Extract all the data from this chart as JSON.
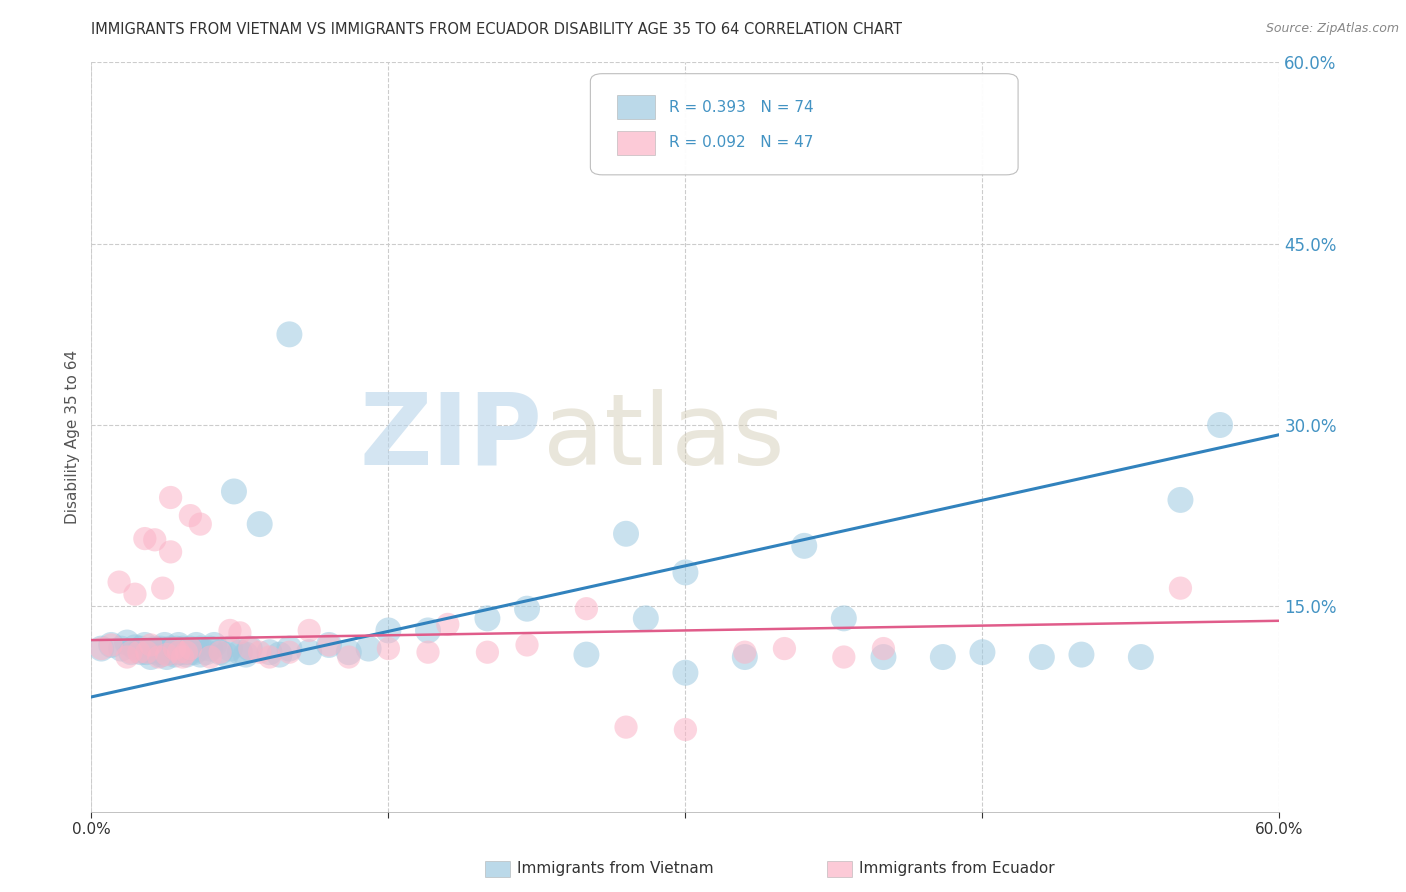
{
  "title": "IMMIGRANTS FROM VIETNAM VS IMMIGRANTS FROM ECUADOR DISABILITY AGE 35 TO 64 CORRELATION CHART",
  "source": "Source: ZipAtlas.com",
  "ylabel": "Disability Age 35 to 64",
  "xlim": [
    0.0,
    0.6
  ],
  "ylim": [
    -0.02,
    0.6
  ],
  "y_tick_positions_right": [
    0.6,
    0.45,
    0.3,
    0.15
  ],
  "legend_vietnam_r": "R = 0.393",
  "legend_vietnam_n": "N = 74",
  "legend_ecuador_r": "R = 0.092",
  "legend_ecuador_n": "N = 47",
  "color_vietnam": "#9ecae1",
  "color_ecuador": "#fbb4c7",
  "color_vietnam_line": "#3182bd",
  "color_ecuador_line": "#e05c8a",
  "color_right_axis": "#4393c3",
  "watermark_zip": "ZIP",
  "watermark_atlas": "atlas",
  "background_color": "#ffffff",
  "vietnam_x": [
    0.005,
    0.01,
    0.015,
    0.018,
    0.02,
    0.022,
    0.025,
    0.025,
    0.027,
    0.028,
    0.03,
    0.03,
    0.032,
    0.033,
    0.035,
    0.035,
    0.036,
    0.037,
    0.038,
    0.04,
    0.04,
    0.041,
    0.042,
    0.043,
    0.044,
    0.045,
    0.046,
    0.047,
    0.048,
    0.05,
    0.05,
    0.052,
    0.053,
    0.055,
    0.055,
    0.058,
    0.06,
    0.062,
    0.065,
    0.068,
    0.07,
    0.072,
    0.075,
    0.078,
    0.08,
    0.085,
    0.09,
    0.095,
    0.1,
    0.11,
    0.12,
    0.13,
    0.14,
    0.15,
    0.17,
    0.2,
    0.22,
    0.25,
    0.28,
    0.3,
    0.33,
    0.36,
    0.38,
    0.4,
    0.43,
    0.45,
    0.48,
    0.5,
    0.53,
    0.55,
    0.27,
    0.3,
    0.1,
    0.57
  ],
  "vietnam_y": [
    0.115,
    0.118,
    0.115,
    0.12,
    0.112,
    0.116,
    0.112,
    0.115,
    0.118,
    0.112,
    0.108,
    0.113,
    0.115,
    0.112,
    0.11,
    0.115,
    0.112,
    0.118,
    0.108,
    0.112,
    0.115,
    0.112,
    0.11,
    0.115,
    0.118,
    0.112,
    0.115,
    0.112,
    0.11,
    0.112,
    0.115,
    0.112,
    0.118,
    0.11,
    0.115,
    0.112,
    0.115,
    0.118,
    0.112,
    0.11,
    0.115,
    0.245,
    0.112,
    0.11,
    0.115,
    0.218,
    0.112,
    0.11,
    0.115,
    0.112,
    0.118,
    0.112,
    0.115,
    0.13,
    0.13,
    0.14,
    0.148,
    0.11,
    0.14,
    0.178,
    0.108,
    0.2,
    0.14,
    0.108,
    0.108,
    0.112,
    0.108,
    0.11,
    0.108,
    0.238,
    0.21,
    0.095,
    0.375,
    0.3
  ],
  "ecuador_x": [
    0.005,
    0.01,
    0.014,
    0.018,
    0.02,
    0.022,
    0.024,
    0.027,
    0.028,
    0.03,
    0.032,
    0.034,
    0.036,
    0.038,
    0.04,
    0.042,
    0.044,
    0.046,
    0.048,
    0.05,
    0.055,
    0.06,
    0.065,
    0.07,
    0.075,
    0.08,
    0.085,
    0.09,
    0.1,
    0.11,
    0.12,
    0.13,
    0.15,
    0.17,
    0.18,
    0.2,
    0.22,
    0.25,
    0.27,
    0.3,
    0.33,
    0.35,
    0.38,
    0.4,
    0.04,
    0.05,
    0.55
  ],
  "ecuador_y": [
    0.115,
    0.118,
    0.17,
    0.108,
    0.112,
    0.16,
    0.112,
    0.206,
    0.112,
    0.118,
    0.205,
    0.108,
    0.165,
    0.11,
    0.195,
    0.115,
    0.112,
    0.108,
    0.112,
    0.115,
    0.218,
    0.108,
    0.112,
    0.13,
    0.128,
    0.115,
    0.112,
    0.108,
    0.112,
    0.13,
    0.118,
    0.108,
    0.115,
    0.112,
    0.135,
    0.112,
    0.118,
    0.148,
    0.05,
    0.048,
    0.112,
    0.115,
    0.108,
    0.115,
    0.24,
    0.225,
    0.165
  ],
  "vietnam_trend_x": [
    0.0,
    0.6
  ],
  "vietnam_trend_y": [
    0.075,
    0.292
  ],
  "ecuador_trend_x": [
    0.0,
    0.6
  ],
  "ecuador_trend_y": [
    0.122,
    0.138
  ]
}
